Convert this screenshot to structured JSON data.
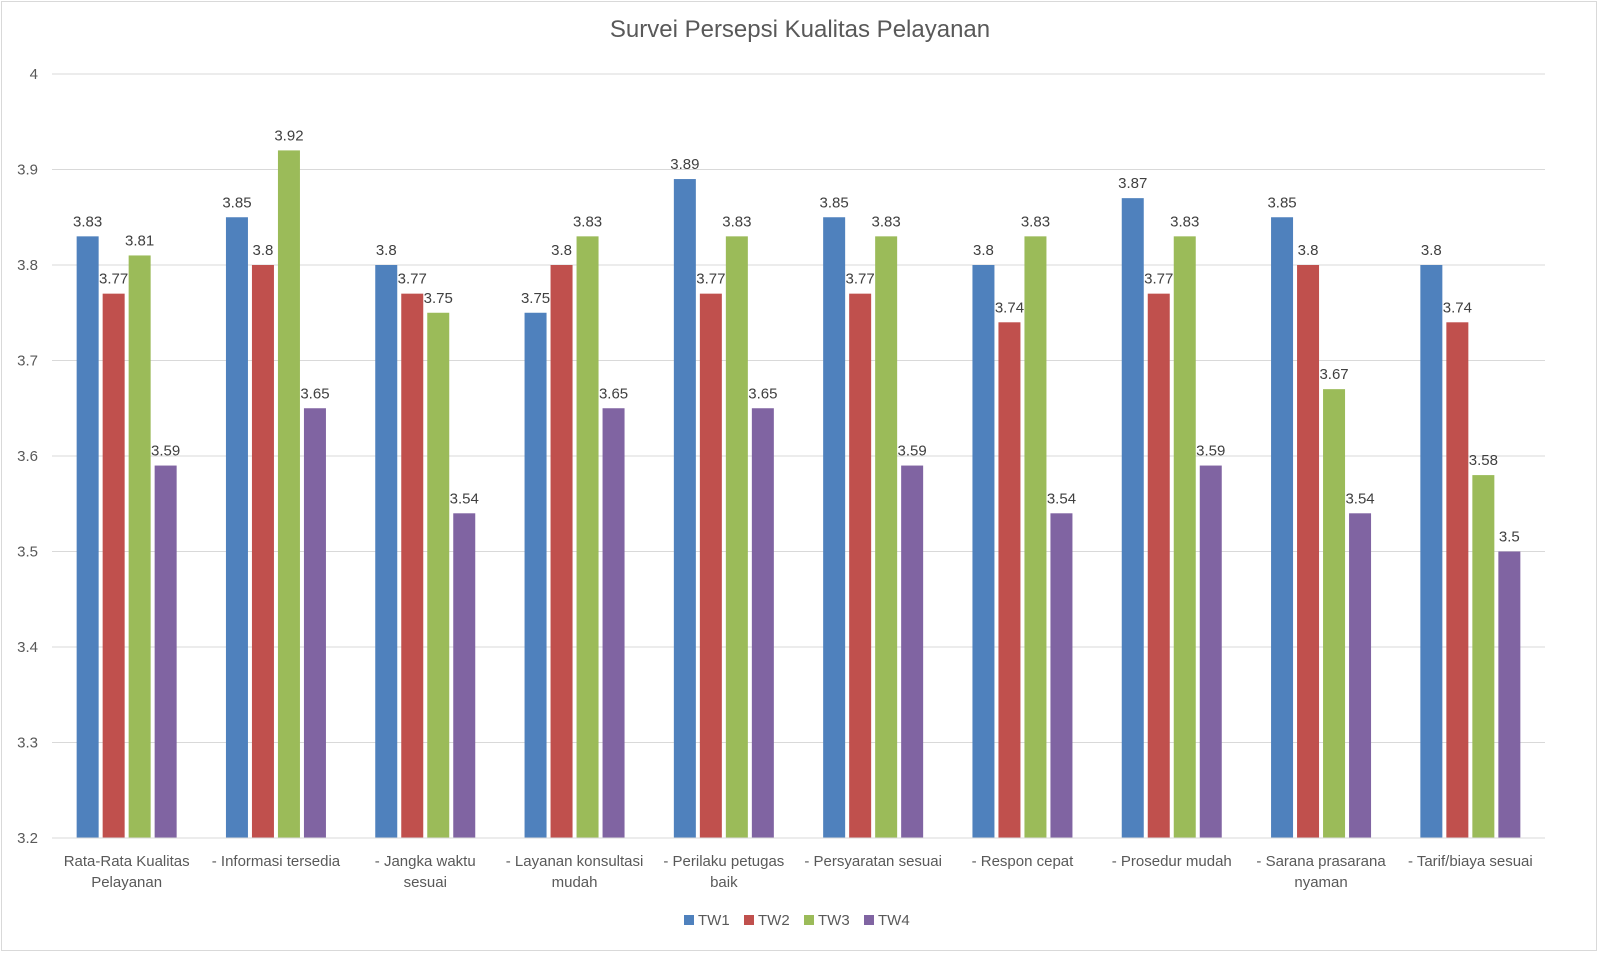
{
  "chart_data": {
    "type": "bar",
    "title": "Survei Persepsi Kualitas Pelayanan",
    "categories": [
      [
        "Rata-Rata Kualitas",
        "Pelayanan"
      ],
      [
        "- Informasi tersedia"
      ],
      [
        "- Jangka waktu",
        "sesuai"
      ],
      [
        "- Layanan konsultasi",
        "mudah"
      ],
      [
        "- Perilaku petugas",
        "baik"
      ],
      [
        "- Persyaratan sesuai"
      ],
      [
        "- Respon cepat"
      ],
      [
        "- Prosedur mudah"
      ],
      [
        "- Sarana prasarana",
        "nyaman"
      ],
      [
        "- Tarif/biaya sesuai"
      ]
    ],
    "series": [
      {
        "name": "TW1",
        "color": "#4f81bd",
        "values": [
          3.83,
          3.85,
          3.8,
          3.75,
          3.89,
          3.85,
          3.8,
          3.87,
          3.85,
          3.8
        ]
      },
      {
        "name": "TW2",
        "color": "#c0504d",
        "values": [
          3.77,
          3.8,
          3.77,
          3.8,
          3.77,
          3.77,
          3.74,
          3.77,
          3.8,
          3.74
        ]
      },
      {
        "name": "TW3",
        "color": "#9bbb59",
        "values": [
          3.81,
          3.92,
          3.75,
          3.83,
          3.83,
          3.83,
          3.83,
          3.83,
          3.67,
          3.58
        ]
      },
      {
        "name": "TW4",
        "color": "#8064a2",
        "values": [
          3.59,
          3.65,
          3.54,
          3.65,
          3.65,
          3.59,
          3.54,
          3.59,
          3.54,
          3.5
        ]
      }
    ],
    "ylim": [
      3.2,
      4
    ],
    "yticks": [
      "3.2",
      "3.3",
      "3.4",
      "3.5",
      "3.6",
      "3.7",
      "3.8",
      "3.9",
      "4"
    ],
    "xlabel": "",
    "ylabel": "",
    "grid": true,
    "data_labels": true,
    "legend_position": "bottom"
  }
}
